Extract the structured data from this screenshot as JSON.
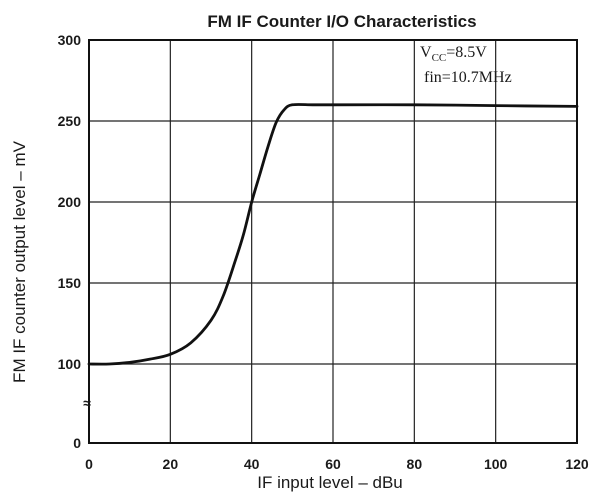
{
  "chart_data": {
    "type": "line",
    "title": "FM IF Counter I/O Characteristics",
    "xlabel": "IF input level – dBu",
    "ylabel": "FM IF counter output level – mV",
    "xlim": [
      0,
      120
    ],
    "ylim": [
      0,
      300
    ],
    "x_ticks": [
      "0",
      "20",
      "40",
      "60",
      "80",
      "100",
      "120"
    ],
    "y_ticks": [
      "0",
      "100",
      "150",
      "200",
      "250",
      "300"
    ],
    "y_axis_break": "≈",
    "grid": true,
    "annotation": {
      "vcc_symbol": "V",
      "vcc_subscript": "CC",
      "vcc_value": "=8.5V",
      "fin_text": "fin=10.7MHz",
      "placement": "top-right"
    },
    "series": [
      {
        "x": [
          0,
          5,
          10,
          15,
          20,
          25,
          30,
          33,
          36,
          38,
          40,
          42,
          44,
          46,
          48,
          50,
          55,
          60,
          80,
          100,
          120
        ],
        "y": [
          100,
          100,
          101,
          103,
          106,
          113,
          127,
          142,
          164,
          180,
          200,
          217,
          234,
          249,
          257,
          260,
          260,
          260,
          260,
          259.5,
          259
        ]
      }
    ],
    "line_color": "#111111",
    "grid_color": "#222222"
  }
}
